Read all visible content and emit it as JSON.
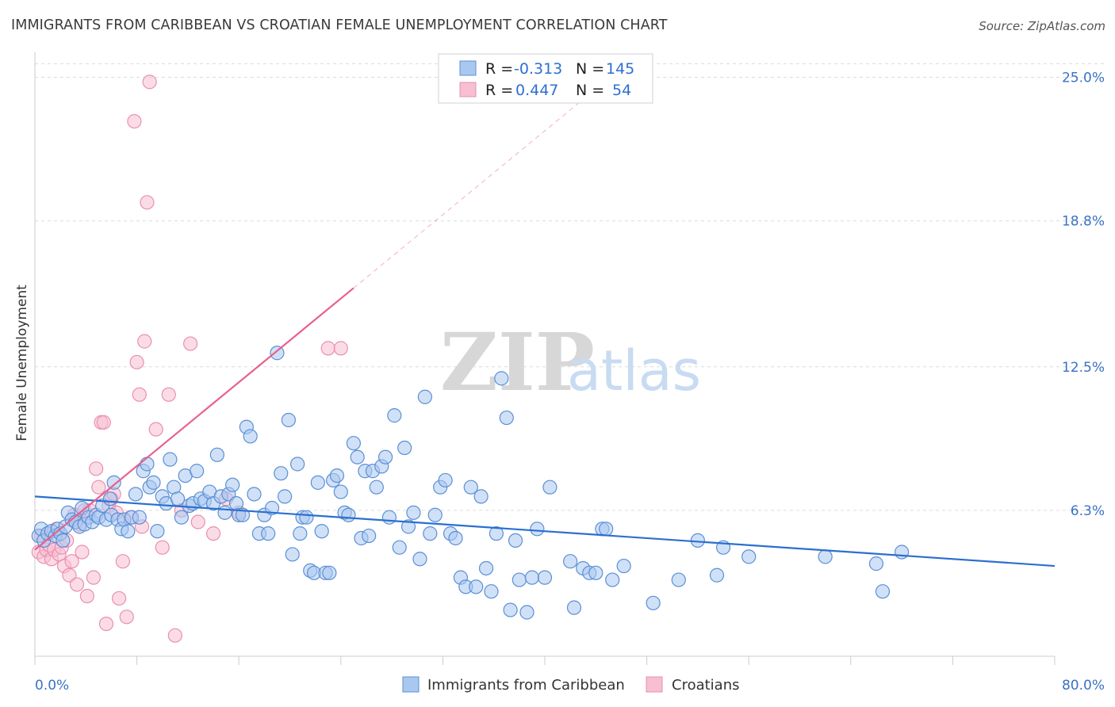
{
  "title": "IMMIGRANTS FROM CARIBBEAN VS CROATIAN FEMALE UNEMPLOYMENT CORRELATION CHART",
  "source": "Source: ZipAtlas.com",
  "watermark": {
    "zip": "ZIP",
    "atlas": "atlas"
  },
  "colors": {
    "blue_fill": "#a9c8f0",
    "blue_stroke": "#5b8fd6",
    "blue_line": "#2b6fd0",
    "pink_fill": "#f7bfd1",
    "pink_stroke": "#ea8fae",
    "pink_line": "#e8608e",
    "grid": "#dcdcdc",
    "tick_text": "#3a72c4"
  },
  "legend": {
    "rows": [
      {
        "r_label": "R =",
        "r_value": "-0.313",
        "n_label": "N =",
        "n_value": "145"
      },
      {
        "r_label": "R =",
        "r_value": "0.447",
        "n_label": "N =",
        "n_value": "54"
      }
    ]
  },
  "bottom_legend": [
    "Immigrants from Caribbean",
    "Croatians"
  ],
  "chart_data": {
    "type": "scatter",
    "title": "IMMIGRANTS FROM CARIBBEAN VS CROATIAN FEMALE UNEMPLOYMENT CORRELATION CHART",
    "xlabel": "",
    "ylabel": "Female Unemployment",
    "xlim": [
      0,
      80
    ],
    "ylim": [
      0,
      25.6
    ],
    "x_tick_labels": [
      "0.0%",
      "80.0%"
    ],
    "y_ticks": [
      6.3,
      12.5,
      18.8,
      25.0
    ],
    "y_tick_labels": [
      "6.3%",
      "12.5%",
      "18.8%",
      "25.0%"
    ],
    "grid": "horizontal dashed",
    "legend_position": "top-center",
    "series": [
      {
        "name": "Immigrants from Caribbean",
        "color": "#a9c8f0",
        "points": [
          [
            0.3,
            5.2
          ],
          [
            0.5,
            5.5
          ],
          [
            0.7,
            5.0
          ],
          [
            1.0,
            5.3
          ],
          [
            1.3,
            5.4
          ],
          [
            1.6,
            5.2
          ],
          [
            1.8,
            5.5
          ],
          [
            2.0,
            5.3
          ],
          [
            2.2,
            5.0
          ],
          [
            2.4,
            5.6
          ],
          [
            2.6,
            6.2
          ],
          [
            2.9,
            5.9
          ],
          [
            3.2,
            5.8
          ],
          [
            3.5,
            5.6
          ],
          [
            3.7,
            6.4
          ],
          [
            3.9,
            5.7
          ],
          [
            4.2,
            6.0
          ],
          [
            4.5,
            5.8
          ],
          [
            4.8,
            6.1
          ],
          [
            5.0,
            6.0
          ],
          [
            5.3,
            6.5
          ],
          [
            5.6,
            5.9
          ],
          [
            5.9,
            6.8
          ],
          [
            6.0,
            6.1
          ],
          [
            6.2,
            7.5
          ],
          [
            6.5,
            5.9
          ],
          [
            6.8,
            5.5
          ],
          [
            7.0,
            5.9
          ],
          [
            7.3,
            5.4
          ],
          [
            7.6,
            6.0
          ],
          [
            7.9,
            7.0
          ],
          [
            8.2,
            6.0
          ],
          [
            8.5,
            8.0
          ],
          [
            8.8,
            8.3
          ],
          [
            9.0,
            7.3
          ],
          [
            9.3,
            7.5
          ],
          [
            9.6,
            5.4
          ],
          [
            10.0,
            6.9
          ],
          [
            10.3,
            6.6
          ],
          [
            10.6,
            8.5
          ],
          [
            10.9,
            7.3
          ],
          [
            11.2,
            6.8
          ],
          [
            11.5,
            6.0
          ],
          [
            11.8,
            7.8
          ],
          [
            12.1,
            6.5
          ],
          [
            12.4,
            6.6
          ],
          [
            12.7,
            8.0
          ],
          [
            13.0,
            6.8
          ],
          [
            13.3,
            6.7
          ],
          [
            13.7,
            7.1
          ],
          [
            14.0,
            6.6
          ],
          [
            14.3,
            8.7
          ],
          [
            14.6,
            6.9
          ],
          [
            14.9,
            6.2
          ],
          [
            15.2,
            7.0
          ],
          [
            15.5,
            7.4
          ],
          [
            15.8,
            6.6
          ],
          [
            16.0,
            6.1
          ],
          [
            16.3,
            6.1
          ],
          [
            16.6,
            9.9
          ],
          [
            16.9,
            9.5
          ],
          [
            17.2,
            7.0
          ],
          [
            17.6,
            5.3
          ],
          [
            18.0,
            6.1
          ],
          [
            18.3,
            5.3
          ],
          [
            18.6,
            6.4
          ],
          [
            19.0,
            13.1
          ],
          [
            19.3,
            7.9
          ],
          [
            19.6,
            6.9
          ],
          [
            19.9,
            10.2
          ],
          [
            20.2,
            4.4
          ],
          [
            20.6,
            8.3
          ],
          [
            20.8,
            5.3
          ],
          [
            21.0,
            6.0
          ],
          [
            21.3,
            6.0
          ],
          [
            21.6,
            3.7
          ],
          [
            21.9,
            3.6
          ],
          [
            22.2,
            7.5
          ],
          [
            22.5,
            5.4
          ],
          [
            22.8,
            3.6
          ],
          [
            23.1,
            3.6
          ],
          [
            23.4,
            7.6
          ],
          [
            23.7,
            7.8
          ],
          [
            24.0,
            7.1
          ],
          [
            24.3,
            6.2
          ],
          [
            24.6,
            6.1
          ],
          [
            25.0,
            9.2
          ],
          [
            25.3,
            8.6
          ],
          [
            25.6,
            5.1
          ],
          [
            25.9,
            8.0
          ],
          [
            26.2,
            5.2
          ],
          [
            26.5,
            8.0
          ],
          [
            26.8,
            7.3
          ],
          [
            27.2,
            8.2
          ],
          [
            27.5,
            8.6
          ],
          [
            27.8,
            6.0
          ],
          [
            28.2,
            10.4
          ],
          [
            28.6,
            4.7
          ],
          [
            29.0,
            9.0
          ],
          [
            29.3,
            5.6
          ],
          [
            29.7,
            6.2
          ],
          [
            30.2,
            4.2
          ],
          [
            30.6,
            11.2
          ],
          [
            31.0,
            5.3
          ],
          [
            31.4,
            6.1
          ],
          [
            31.8,
            7.3
          ],
          [
            32.2,
            7.6
          ],
          [
            32.6,
            5.3
          ],
          [
            33.0,
            5.1
          ],
          [
            33.4,
            3.4
          ],
          [
            33.8,
            3.0
          ],
          [
            34.2,
            7.3
          ],
          [
            34.6,
            3.0
          ],
          [
            35.0,
            6.9
          ],
          [
            35.4,
            3.8
          ],
          [
            35.8,
            2.8
          ],
          [
            36.2,
            5.3
          ],
          [
            36.6,
            12.0
          ],
          [
            37.0,
            10.3
          ],
          [
            37.3,
            2.0
          ],
          [
            37.7,
            5.0
          ],
          [
            38.0,
            3.3
          ],
          [
            38.6,
            1.9
          ],
          [
            39.0,
            3.4
          ],
          [
            39.4,
            5.5
          ],
          [
            40.0,
            3.4
          ],
          [
            40.4,
            7.3
          ],
          [
            42.0,
            4.1
          ],
          [
            42.3,
            2.1
          ],
          [
            43.0,
            3.8
          ],
          [
            43.5,
            3.6
          ],
          [
            44.0,
            3.6
          ],
          [
            44.5,
            5.5
          ],
          [
            44.8,
            5.5
          ],
          [
            45.3,
            3.3
          ],
          [
            46.2,
            3.9
          ],
          [
            48.5,
            2.3
          ],
          [
            50.5,
            3.3
          ],
          [
            52.0,
            5.0
          ],
          [
            53.5,
            3.5
          ],
          [
            54.0,
            4.7
          ],
          [
            56.0,
            4.3
          ],
          [
            62.0,
            4.3
          ],
          [
            66.0,
            4.0
          ],
          [
            66.5,
            2.8
          ],
          [
            68.0,
            4.5
          ]
        ]
      },
      {
        "name": "Croatians",
        "color": "#f7bfd1",
        "points": [
          [
            0.3,
            4.5
          ],
          [
            0.5,
            5.2
          ],
          [
            0.7,
            4.3
          ],
          [
            0.9,
            4.6
          ],
          [
            1.1,
            4.8
          ],
          [
            1.3,
            4.2
          ],
          [
            1.5,
            4.6
          ],
          [
            1.7,
            5.5
          ],
          [
            1.9,
            4.4
          ],
          [
            2.1,
            4.7
          ],
          [
            2.3,
            3.9
          ],
          [
            2.5,
            5.0
          ],
          [
            2.7,
            3.5
          ],
          [
            2.9,
            4.1
          ],
          [
            3.1,
            6.1
          ],
          [
            3.3,
            3.1
          ],
          [
            3.5,
            5.7
          ],
          [
            3.7,
            4.5
          ],
          [
            3.9,
            6.3
          ],
          [
            4.1,
            2.6
          ],
          [
            4.3,
            6.3
          ],
          [
            4.6,
            3.4
          ],
          [
            4.8,
            8.1
          ],
          [
            5.0,
            7.3
          ],
          [
            5.2,
            10.1
          ],
          [
            5.4,
            10.1
          ],
          [
            5.6,
            1.4
          ],
          [
            5.8,
            6.5
          ],
          [
            6.0,
            6.8
          ],
          [
            6.2,
            7.0
          ],
          [
            6.4,
            6.2
          ],
          [
            6.6,
            2.5
          ],
          [
            6.9,
            4.1
          ],
          [
            7.2,
            1.7
          ],
          [
            7.5,
            6.0
          ],
          [
            7.8,
            23.1
          ],
          [
            8.0,
            12.7
          ],
          [
            8.2,
            11.3
          ],
          [
            8.4,
            5.6
          ],
          [
            8.6,
            13.6
          ],
          [
            8.8,
            19.6
          ],
          [
            9.0,
            24.8
          ],
          [
            9.5,
            9.8
          ],
          [
            10.0,
            4.7
          ],
          [
            10.5,
            11.3
          ],
          [
            11.0,
            0.9
          ],
          [
            11.5,
            6.3
          ],
          [
            12.2,
            13.5
          ],
          [
            12.8,
            5.8
          ],
          [
            14.0,
            5.3
          ],
          [
            15.0,
            6.8
          ],
          [
            16.0,
            6.2
          ],
          [
            23.0,
            13.3
          ],
          [
            24.0,
            13.3
          ]
        ]
      }
    ],
    "trendlines": [
      {
        "series": "Immigrants from Caribbean",
        "x": [
          0,
          80
        ],
        "y": [
          6.9,
          3.9
        ],
        "style": "solid"
      },
      {
        "series": "Croatians",
        "x": [
          0,
          25
        ],
        "y": [
          4.6,
          15.9
        ],
        "style": "solid"
      },
      {
        "series": "Croatians",
        "x": [
          25,
          44
        ],
        "y": [
          15.9,
          24.5
        ],
        "style": "dashed"
      }
    ]
  }
}
